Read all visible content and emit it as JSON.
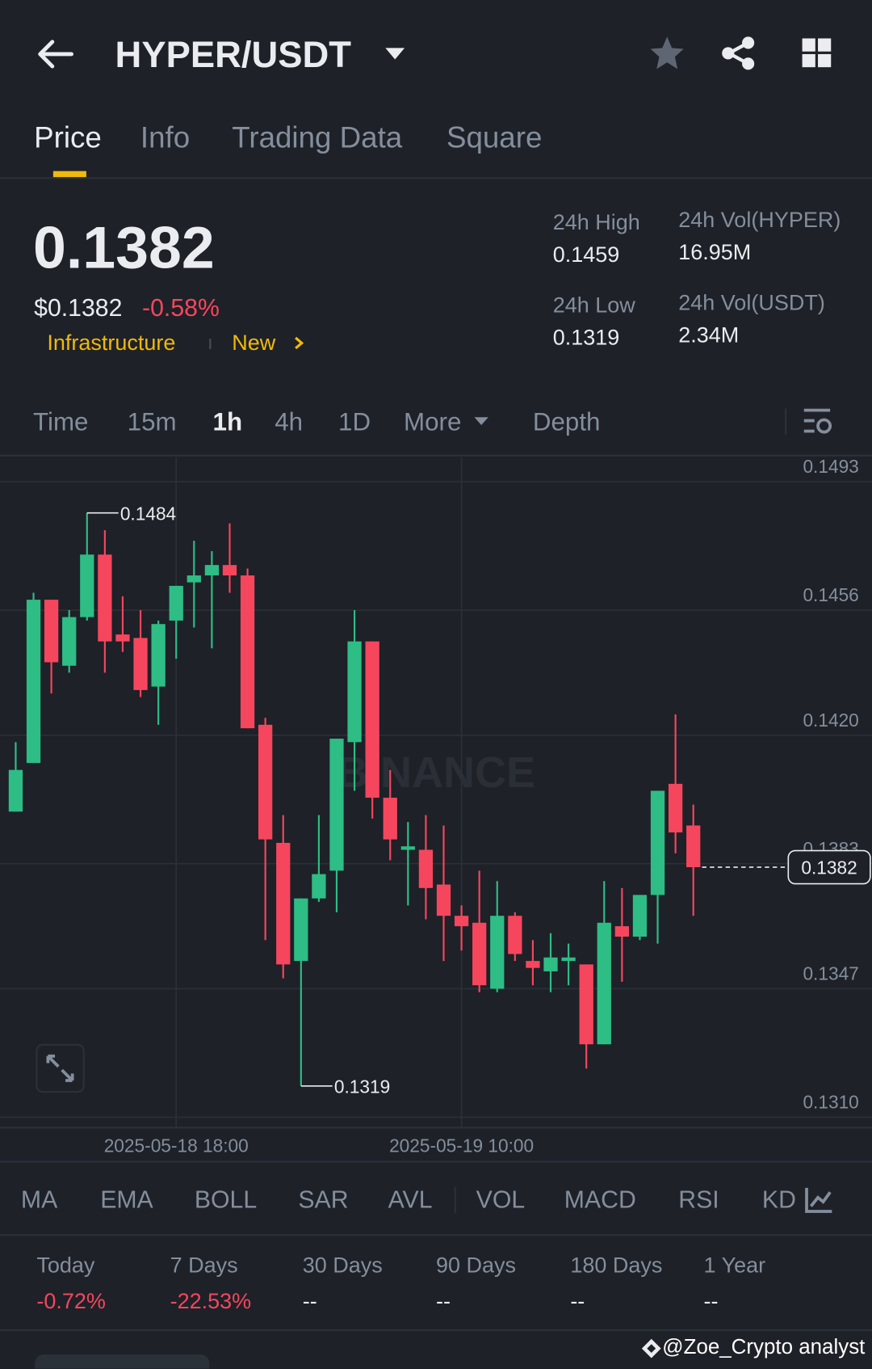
{
  "header": {
    "title": "HYPER/USDT"
  },
  "tabs": [
    "Price",
    "Info",
    "Trading Data",
    "Square"
  ],
  "ticker": {
    "price": "0.1382",
    "usd": "$0.1382",
    "change": "-0.58%",
    "tags": [
      "Infrastructure",
      "New"
    ],
    "stats": [
      {
        "label": "24h High",
        "value": "0.1459"
      },
      {
        "label": "24h Low",
        "value": "0.1319"
      },
      {
        "label": "24h Vol(HYPER)",
        "value": "16.95M"
      },
      {
        "label": "24h Vol(USDT)",
        "value": "2.34M"
      }
    ]
  },
  "intervals": [
    "Time",
    "15m",
    "1h",
    "4h",
    "1D",
    "More",
    "Depth"
  ],
  "chart_data": {
    "type": "candlestick",
    "watermark": "BINANCE",
    "up_color": "#2ebd85",
    "down_color": "#f6465d",
    "x": [
      "2025-05-18 09:00",
      "2025-05-18 10:00",
      "2025-05-18 11:00",
      "2025-05-18 12:00",
      "2025-05-18 13:00",
      "2025-05-18 14:00",
      "2025-05-18 15:00",
      "2025-05-18 16:00",
      "2025-05-18 17:00",
      "2025-05-18 18:00",
      "2025-05-18 19:00",
      "2025-05-18 20:00",
      "2025-05-18 21:00",
      "2025-05-18 22:00",
      "2025-05-18 23:00",
      "2025-05-19 00:00",
      "2025-05-19 01:00",
      "2025-05-19 02:00",
      "2025-05-19 03:00",
      "2025-05-19 04:00",
      "2025-05-19 05:00",
      "2025-05-19 06:00",
      "2025-05-19 07:00",
      "2025-05-19 08:00",
      "2025-05-19 09:00",
      "2025-05-19 10:00",
      "2025-05-19 11:00",
      "2025-05-19 12:00",
      "2025-05-19 13:00",
      "2025-05-19 14:00",
      "2025-05-19 15:00",
      "2025-05-19 16:00",
      "2025-05-19 17:00",
      "2025-05-19 18:00",
      "2025-05-19 19:00",
      "2025-05-19 20:00",
      "2025-05-19 21:00",
      "2025-05-19 22:00",
      "2025-05-19 23:00"
    ],
    "open": [
      0.1398,
      0.1412,
      0.1459,
      0.144,
      0.1454,
      0.1472,
      0.1449,
      0.1448,
      0.1434,
      0.1453,
      0.1464,
      0.1466,
      0.1469,
      0.1466,
      0.1423,
      0.1389,
      0.1355,
      0.1373,
      0.1381,
      0.1418,
      0.1447,
      0.1402,
      0.1387,
      0.1387,
      0.1377,
      0.1368,
      0.1366,
      0.1347,
      0.1368,
      0.1355,
      0.1352,
      0.1355,
      0.1354,
      0.1331,
      0.1365,
      0.1362,
      0.1374,
      0.1406,
      0.1394
    ],
    "high": [
      0.1418,
      0.1461,
      0.1459,
      0.1456,
      0.1484,
      0.1479,
      0.146,
      0.1456,
      0.1453,
      0.1463,
      0.1476,
      0.1473,
      0.1481,
      0.1468,
      0.1425,
      0.1397,
      0.1373,
      0.1397,
      0.1419,
      0.1456,
      0.1447,
      0.141,
      0.1395,
      0.1397,
      0.1394,
      0.1371,
      0.1381,
      0.1378,
      0.1369,
      0.1361,
      0.1363,
      0.136,
      0.1354,
      0.1378,
      0.1376,
      0.1374,
      0.1404,
      0.1426,
      0.14
    ],
    "low": [
      0.1398,
      0.1412,
      0.1432,
      0.1438,
      0.1453,
      0.1438,
      0.1444,
      0.1431,
      0.1423,
      0.1442,
      0.1451,
      0.1445,
      0.1461,
      0.1422,
      0.1361,
      0.135,
      0.1319,
      0.1372,
      0.1369,
      0.1404,
      0.1396,
      0.1384,
      0.1371,
      0.1367,
      0.1355,
      0.1358,
      0.1346,
      0.1346,
      0.1355,
      0.1348,
      0.1346,
      0.1348,
      0.1324,
      0.1331,
      0.1349,
      0.1361,
      0.136,
      0.1386,
      0.1368
    ],
    "close": [
      0.141,
      0.1459,
      0.1441,
      0.1454,
      0.1472,
      0.1447,
      0.1447,
      0.1433,
      0.1452,
      0.1463,
      0.1466,
      0.1469,
      0.1466,
      0.1422,
      0.139,
      0.1354,
      0.1373,
      0.138,
      0.1419,
      0.1447,
      0.1402,
      0.139,
      0.1388,
      0.1376,
      0.1368,
      0.1365,
      0.1348,
      0.1368,
      0.1357,
      0.1353,
      0.1356,
      0.1356,
      0.1331,
      0.1366,
      0.1362,
      0.1374,
      0.1404,
      0.1392,
      0.1382
    ],
    "ylim": [
      0.1307,
      0.15
    ],
    "yticks": [
      0.1493,
      0.1456,
      {
        "value": 0.142,
        "label": "0.1420"
      },
      0.1383,
      0.1347,
      {
        "value": 0.131,
        "label": "0.1310"
      }
    ],
    "xticks": [
      "2025-05-18 18:00",
      "2025-05-19 10:00"
    ],
    "grid": true
  },
  "indicators": [
    "MA",
    "EMA",
    "BOLL",
    "SAR",
    "AVL",
    "VOL",
    "MACD",
    "RSI",
    "KDJ"
  ],
  "performance": [
    {
      "label": "Today",
      "value": "-0.72%"
    },
    {
      "label": "7 Days",
      "value": "-22.53%"
    },
    {
      "label": "30 Days",
      "value": "--"
    },
    {
      "label": "90 Days",
      "value": "--"
    },
    {
      "label": "180 Days",
      "value": "--"
    },
    {
      "label": "1 Year",
      "value": "--"
    }
  ],
  "credit": "@Zoe_Crypto analyst"
}
